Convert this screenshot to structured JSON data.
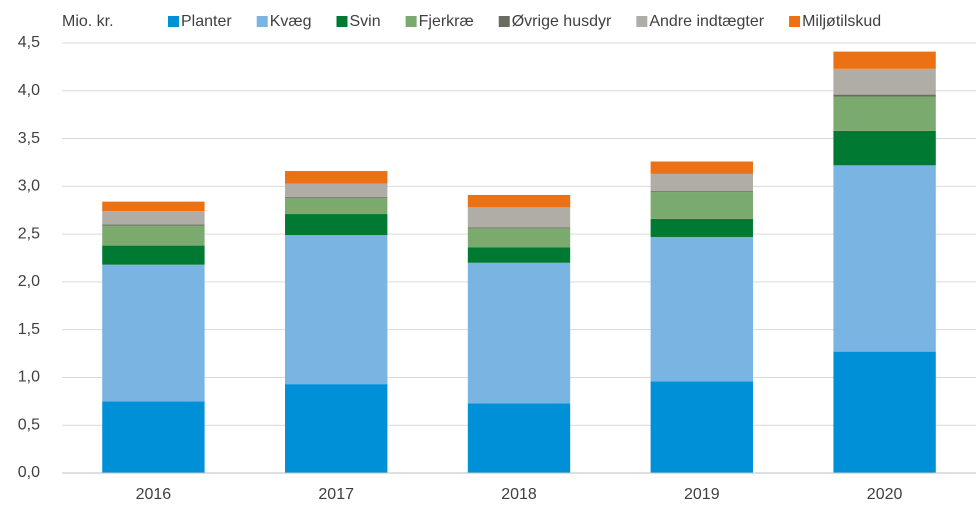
{
  "chart_data": {
    "type": "stacked_bar",
    "y_label": "Mio. kr.",
    "categories": [
      "2016",
      "2017",
      "2018",
      "2019",
      "2020"
    ],
    "series": [
      {
        "name": "Planter",
        "color": "#0090d8",
        "values": [
          0.75,
          0.93,
          0.73,
          0.96,
          1.27
        ]
      },
      {
        "name": "Kvæg",
        "color": "#79b4e3",
        "values": [
          1.43,
          1.56,
          1.47,
          1.51,
          1.95
        ]
      },
      {
        "name": "Svin",
        "color": "#007a33",
        "values": [
          0.2,
          0.22,
          0.16,
          0.19,
          0.36
        ]
      },
      {
        "name": "Fjerkræ",
        "color": "#7aaa6e",
        "values": [
          0.21,
          0.17,
          0.2,
          0.28,
          0.36
        ]
      },
      {
        "name": "Øvrige husdyr",
        "color": "#6b6b60",
        "values": [
          0.01,
          0.01,
          0.01,
          0.01,
          0.02
        ]
      },
      {
        "name": "Andre indtægter",
        "color": "#b0ada6",
        "values": [
          0.14,
          0.14,
          0.21,
          0.18,
          0.27
        ]
      },
      {
        "name": "Miljøtilskud",
        "color": "#ec7014",
        "values": [
          0.1,
          0.13,
          0.13,
          0.13,
          0.18
        ]
      }
    ],
    "ylim": [
      0,
      4.5
    ],
    "yticks": [
      {
        "value": 0,
        "label": "0,0"
      },
      {
        "value": 0.5,
        "label": "0,5"
      },
      {
        "value": 1,
        "label": "1,0"
      },
      {
        "value": 1.5,
        "label": "1,5"
      },
      {
        "value": 2,
        "label": "2,0"
      },
      {
        "value": 2.5,
        "label": "2,5"
      },
      {
        "value": 3,
        "label": "3,0"
      },
      {
        "value": 3.5,
        "label": "3,5"
      },
      {
        "value": 4,
        "label": "4,0"
      },
      {
        "value": 4.5,
        "label": "4,5"
      }
    ],
    "grid": true,
    "legend": "top"
  }
}
